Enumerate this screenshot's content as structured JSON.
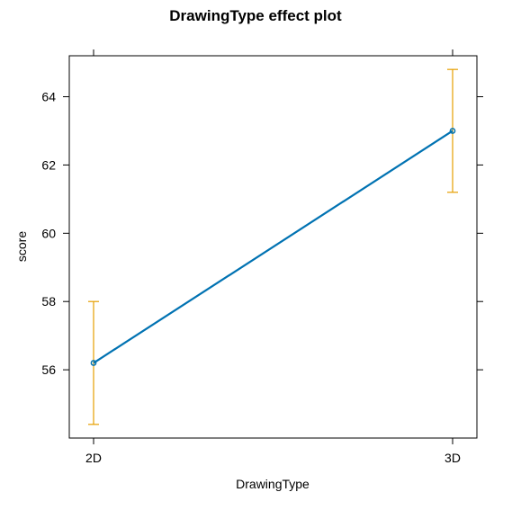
{
  "chart_data": {
    "type": "line",
    "title": "DrawingType effect plot",
    "xlabel": "DrawingType",
    "ylabel": "score",
    "categories": [
      "2D",
      "3D"
    ],
    "series": [
      {
        "values": [
          56.2,
          63.0
        ],
        "lower": [
          54.4,
          61.2
        ],
        "upper": [
          58.0,
          64.8
        ],
        "color": "#0072b2",
        "errorbar_color": "#e69f00"
      }
    ],
    "yticks": [
      56,
      58,
      60,
      62,
      64
    ],
    "ylim": [
      54.0,
      65.2
    ],
    "grid": false,
    "legend": "none"
  }
}
